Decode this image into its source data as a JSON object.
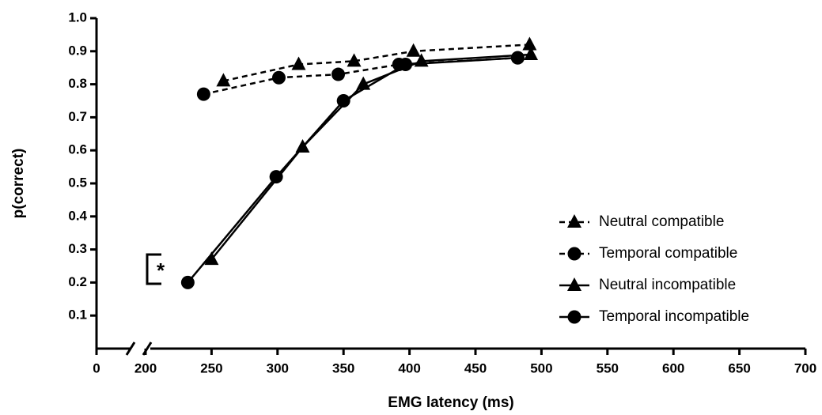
{
  "chart_data": {
    "type": "line",
    "xlabel": "EMG latency (ms)",
    "ylabel": "p(correct)",
    "xlim": [
      0,
      700
    ],
    "xbreak": [
      0,
      200
    ],
    "xticks": [
      0,
      200,
      250,
      300,
      350,
      400,
      450,
      500,
      550,
      600,
      650,
      700
    ],
    "ylim": [
      0,
      1
    ],
    "yticks": [
      0.1,
      0.2,
      0.3,
      0.4,
      0.5,
      0.6,
      0.7,
      0.8,
      0.9,
      {
        "value": 1,
        "label": "1.0"
      }
    ],
    "legend": "lower right",
    "annotation": "*",
    "series": [
      {
        "name": "Neutral compatible",
        "color": "#000000",
        "marker": "triangle",
        "linestyle": "dashed",
        "x": [
          259,
          316,
          358,
          403,
          491
        ],
        "values": [
          0.81,
          0.86,
          0.87,
          0.9,
          0.92
        ]
      },
      {
        "name": "Temporal compatible",
        "color": "#000000",
        "marker": "circle",
        "linestyle": "dashed",
        "x": [
          244,
          301,
          346,
          392,
          482
        ],
        "values": [
          0.77,
          0.82,
          0.83,
          0.86,
          0.88
        ]
      },
      {
        "name": "Neutral incompatible",
        "color": "#000000",
        "marker": "triangle",
        "linestyle": "solid",
        "x": [
          250,
          319,
          365,
          409,
          492
        ],
        "values": [
          0.27,
          0.61,
          0.8,
          0.87,
          0.89
        ]
      },
      {
        "name": "Temporal incompatible",
        "color": "#000000",
        "marker": "circle",
        "linestyle": "solid",
        "x": [
          232,
          299,
          350,
          397,
          482
        ],
        "values": [
          0.2,
          0.52,
          0.75,
          0.86,
          0.88
        ]
      }
    ]
  }
}
